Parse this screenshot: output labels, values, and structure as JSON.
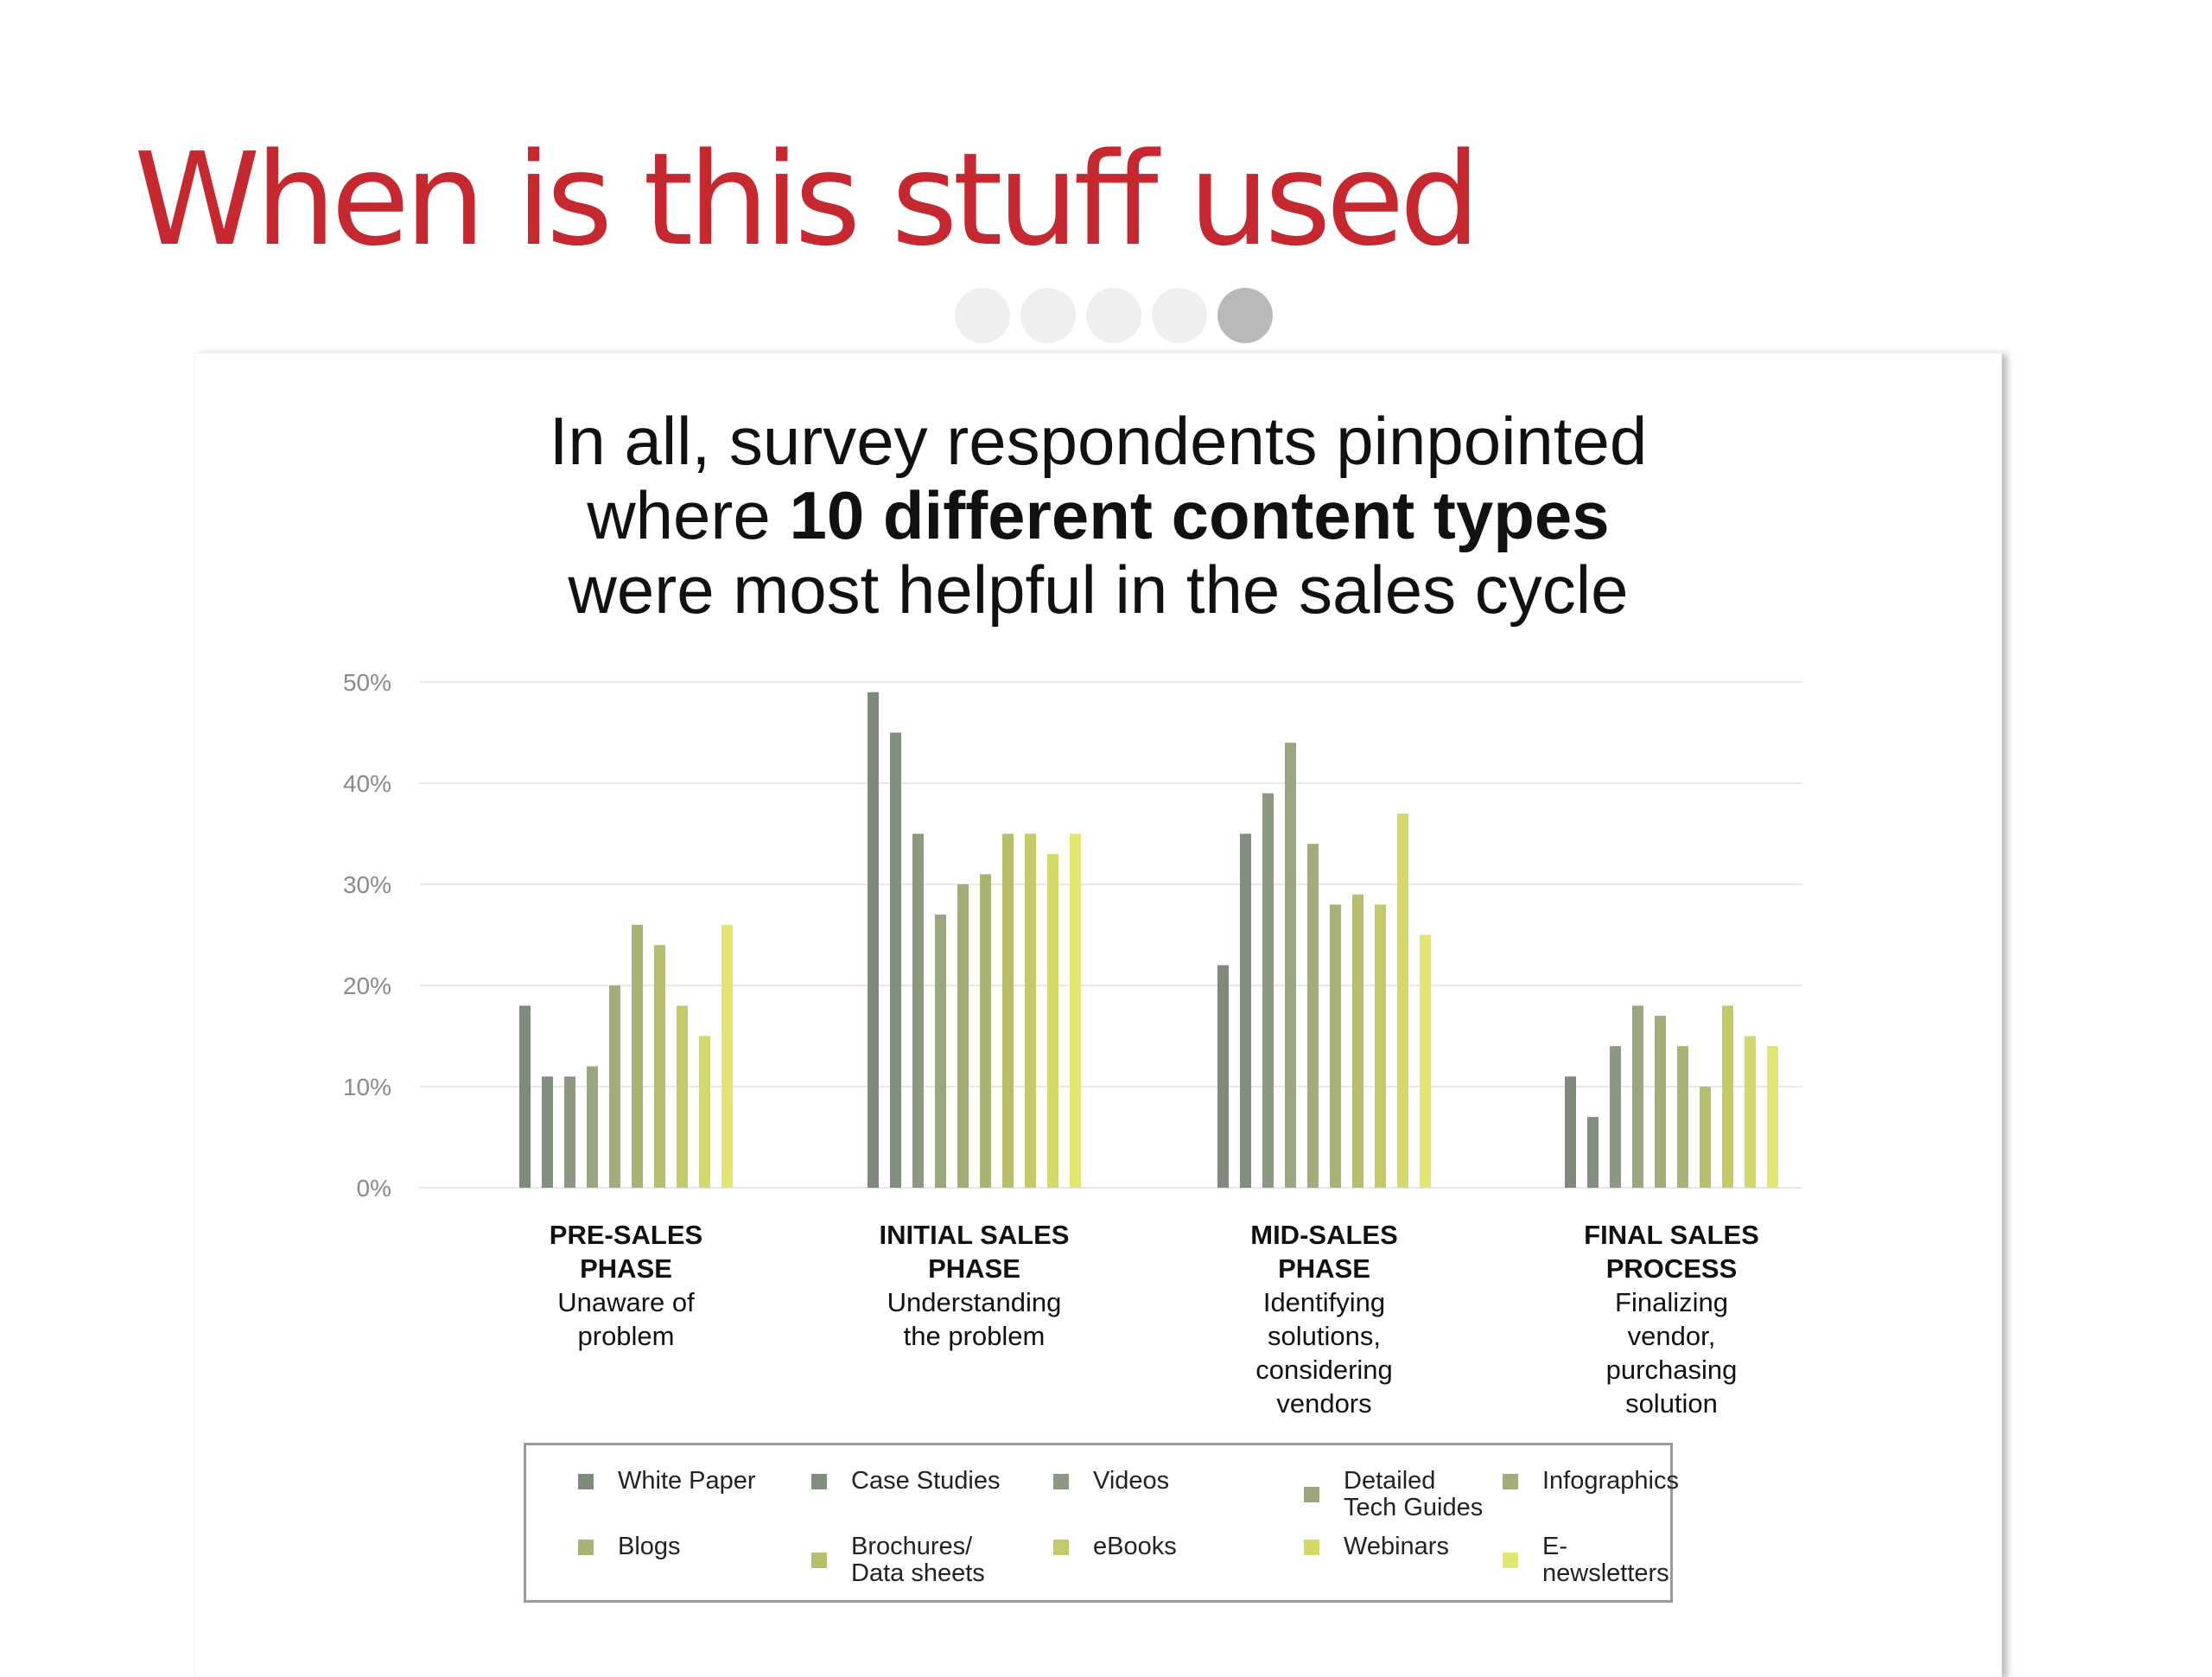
{
  "slide": {
    "title": "When is this stuff used",
    "progress_dots": {
      "total": 5,
      "active": 5
    }
  },
  "headline": {
    "line1": "In all, survey respondents pinpointed",
    "line2_pre": "where ",
    "line2_bold": "10 different content types",
    "line3": "were most helpful in the sales cycle"
  },
  "chart_data": {
    "type": "bar",
    "categories": [
      {
        "name": "PRE-SALES\nPHASE",
        "description": "Unaware of\nproblem"
      },
      {
        "name": "INITIAL SALES\nPHASE",
        "description": "Understanding\nthe problem"
      },
      {
        "name": "MID-SALES\nPHASE",
        "description": "Identifying\nsolutions,\nconsidering\nvendors"
      },
      {
        "name": "FINAL SALES\nPROCESS",
        "description": "Finalizing\nvendor,\npurchasing\nsolution"
      }
    ],
    "ylim": [
      0,
      50
    ],
    "yticks": [
      "0%",
      "10%",
      "20%",
      "30%",
      "40%",
      "50%"
    ],
    "grid": true,
    "legend_position": "bottom",
    "series": [
      {
        "name": "White Paper",
        "color": "#7f8a7c",
        "values": [
          18,
          49,
          22,
          11
        ]
      },
      {
        "name": "Case Studies",
        "color": "#808f7e",
        "values": [
          11,
          45,
          35,
          7
        ]
      },
      {
        "name": "Videos",
        "color": "#8c9980",
        "values": [
          11,
          35,
          39,
          14
        ]
      },
      {
        "name": "Detailed\nTech Guides",
        "color": "#9aa67d",
        "values": [
          12,
          27,
          44,
          18
        ]
      },
      {
        "name": "Infographics",
        "color": "#a3ad77",
        "values": [
          20,
          30,
          34,
          17
        ]
      },
      {
        "name": "Blogs",
        "color": "#aab373",
        "values": [
          26,
          31,
          28,
          14
        ]
      },
      {
        "name": "Brochures/\nData sheets",
        "color": "#b7be6c",
        "values": [
          24,
          35,
          29,
          10
        ]
      },
      {
        "name": "eBooks",
        "color": "#c4cb66",
        "values": [
          18,
          35,
          28,
          18
        ]
      },
      {
        "name": "Webinars",
        "color": "#d4da6a",
        "values": [
          15,
          33,
          37,
          15
        ]
      },
      {
        "name": "E-newsletters",
        "color": "#e3e670",
        "values": [
          26,
          35,
          25,
          14
        ]
      }
    ]
  }
}
